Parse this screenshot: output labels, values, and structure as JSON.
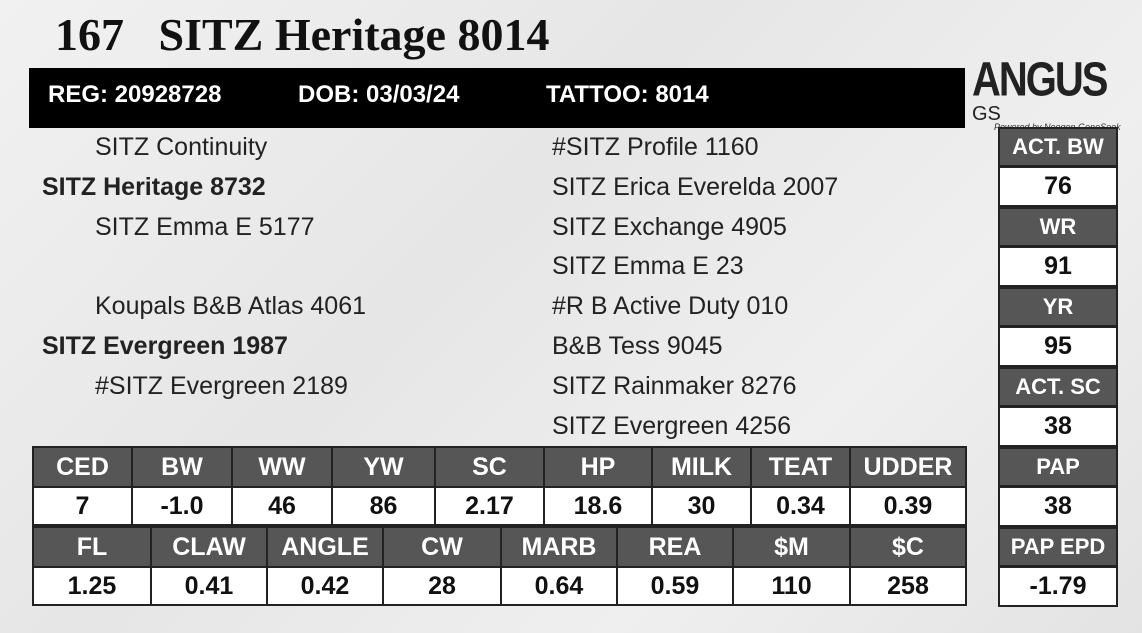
{
  "header": {
    "lot": "167",
    "name": "SITZ Heritage 8014"
  },
  "id_bar": [
    "REG: 20928728",
    "DOB: 03/03/24",
    "TATTOO: 8014"
  ],
  "logo": {
    "main": "ANGUS",
    "suffix": "GS",
    "tagline": "Powered by Neogen GeneSeek"
  },
  "pedigree": {
    "left": [
      {
        "text": "SITZ Continuity",
        "bold": false
      },
      {
        "text": "SITZ Heritage 8732",
        "bold": true
      },
      {
        "text": "SITZ Emma E 5177",
        "bold": false
      },
      null,
      {
        "text": "Koupals B&B Atlas 4061",
        "bold": false
      },
      {
        "text": "SITZ Evergreen 1987",
        "bold": true
      },
      {
        "text": "#SITZ Evergreen 2189",
        "bold": false
      }
    ],
    "right": [
      "#SITZ Profile 1160",
      "SITZ Erica Everelda 2007",
      "SITZ Exchange 4905",
      "SITZ Emma E 23",
      "#R B Active Duty 010",
      "B&B Tess 9045",
      "SITZ Rainmaker 8276",
      "SITZ Evergreen 4256"
    ]
  },
  "side_stats": [
    {
      "label": "ACT. BW",
      "value": "76"
    },
    {
      "label": "WR",
      "value": "91"
    },
    {
      "label": "YR",
      "value": "95"
    },
    {
      "label": "ACT. SC",
      "value": "38"
    },
    {
      "label": "PAP",
      "value": "38"
    },
    {
      "label": "PAP EPD",
      "value": "-1.79"
    }
  ],
  "epd_tables": [
    {
      "headers": [
        "CED",
        "BW",
        "WW",
        "YW",
        "SC",
        "HP",
        "MILK",
        "TEAT",
        "UDDER"
      ],
      "values": [
        "7",
        "-1.0",
        "46",
        "86",
        "2.17",
        "18.6",
        "30",
        "0.34",
        "0.39"
      ]
    },
    {
      "headers": [
        "FL",
        "CLAW",
        "ANGLE",
        "CW",
        "MARB",
        "REA",
        "$M",
        "$C"
      ],
      "values": [
        "1.25",
        "0.41",
        "0.42",
        "28",
        "0.64",
        "0.59",
        "110",
        "258"
      ]
    }
  ]
}
